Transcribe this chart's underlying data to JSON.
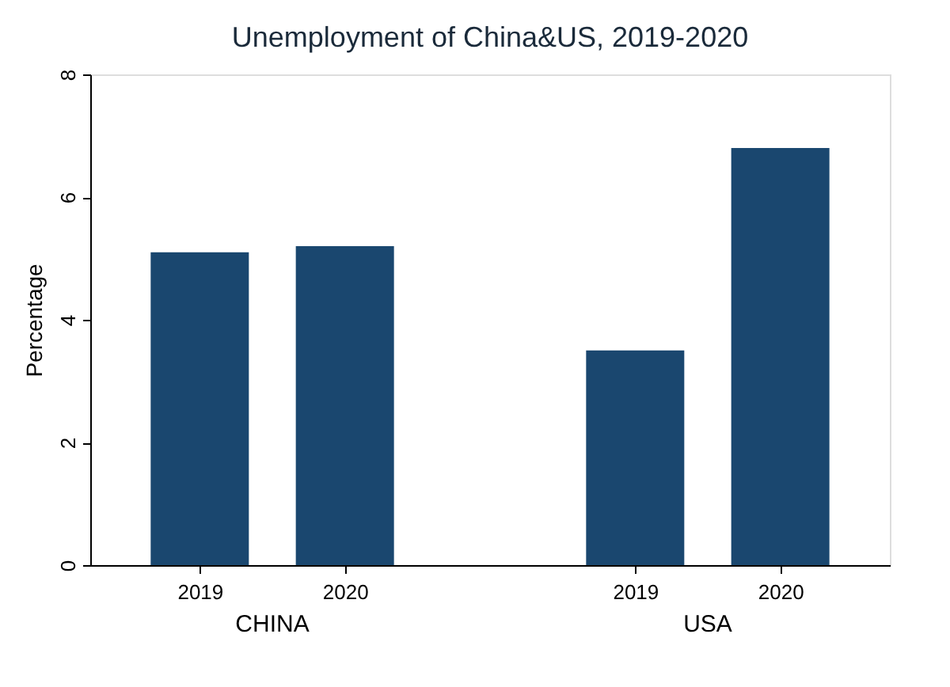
{
  "chart_data": {
    "type": "bar",
    "title": "Unemployment of China&US, 2019-2020",
    "ylabel": "Percentage",
    "categories": [
      "2019",
      "2020",
      null,
      "2019",
      "2020"
    ],
    "values": [
      5.1,
      5.2,
      null,
      3.5,
      6.8
    ],
    "color": "#1a476f",
    "ylim": [
      0,
      8
    ],
    "yticks": [
      0,
      2,
      4,
      6,
      8
    ],
    "annotations": [
      "CHINA",
      "USA"
    ],
    "grid": false
  }
}
